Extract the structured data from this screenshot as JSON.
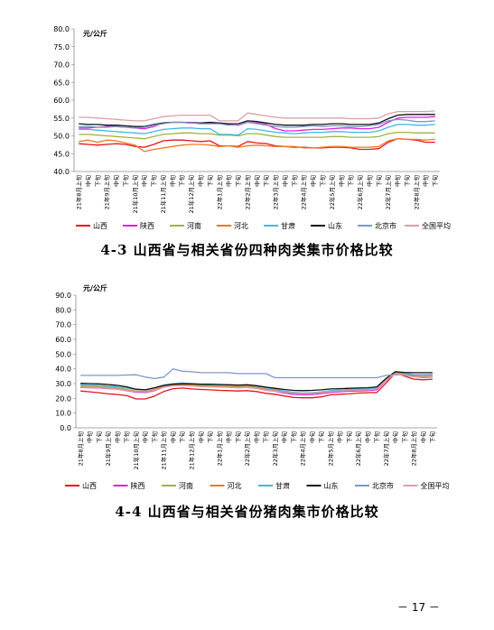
{
  "page_number": "－ 17 －",
  "chart_data": [
    {
      "type": "line",
      "unit": "元/公斤",
      "ylim": [
        40,
        80
      ],
      "yticks": [
        "80.0",
        "75.0",
        "70.0",
        "65.0",
        "60.0",
        "55.0",
        "50.0",
        "45.0",
        "40.0"
      ],
      "grid": false,
      "legend_position": "bottom",
      "xtick_labels": [
        "21年8月上旬",
        "中旬",
        "下旬",
        "21年9月上旬",
        "中旬",
        "下旬",
        "21年10月上旬",
        "中旬",
        "下旬",
        "21年11月上旬",
        "中旬",
        "下旬",
        "21年12月上旬",
        "中旬",
        "下旬",
        "22年1月上旬",
        "中旬",
        "下旬",
        "22年2月上旬",
        "中旬",
        "下旬",
        "22年3月上旬",
        "中旬",
        "下旬",
        "22年4月上旬",
        "中旬",
        "下旬",
        "22年5月上旬",
        "中旬",
        "下旬",
        "22年6月上旬",
        "中旬",
        "下旬",
        "22年7月上旬",
        "中旬",
        "下旬",
        "22年8月上旬",
        "中旬",
        "下旬"
      ],
      "series": [
        {
          "name": "山西",
          "color": "#e8141c",
          "values": [
            47.8,
            47.6,
            47.4,
            47.6,
            47.8,
            47.6,
            47.0,
            46.8,
            47.6,
            48.6,
            48.8,
            48.8,
            48.6,
            48.4,
            48.6,
            47.2,
            47.2,
            47.0,
            48.4,
            48.0,
            47.8,
            47.2,
            47.0,
            46.8,
            46.8,
            46.6,
            46.6,
            46.8,
            46.8,
            46.6,
            46.2,
            46.2,
            46.4,
            48.2,
            49.2,
            49.0,
            48.8,
            48.2,
            48.2
          ]
        },
        {
          "name": "陕西",
          "color": "#e020e0",
          "values": [
            52.2,
            52.2,
            52.4,
            52.6,
            52.6,
            52.4,
            52.2,
            52.0,
            52.6,
            53.6,
            53.8,
            53.8,
            53.8,
            53.6,
            53.6,
            53.6,
            53.2,
            53.0,
            53.8,
            53.6,
            53.2,
            52.0,
            51.4,
            51.4,
            51.6,
            51.8,
            51.8,
            52.0,
            52.2,
            52.2,
            52.0,
            52.0,
            52.4,
            53.8,
            55.0,
            55.2,
            55.2,
            55.2,
            55.4
          ]
        },
        {
          "name": "河南",
          "color": "#9fb43c",
          "values": [
            50.4,
            50.4,
            50.2,
            50.0,
            49.8,
            49.6,
            49.4,
            49.2,
            49.8,
            50.4,
            50.6,
            50.8,
            50.8,
            50.6,
            50.6,
            50.2,
            50.2,
            50.0,
            50.6,
            50.6,
            50.2,
            49.8,
            49.6,
            49.6,
            49.6,
            49.6,
            49.6,
            49.8,
            49.8,
            49.6,
            49.6,
            49.6,
            49.8,
            50.6,
            51.0,
            51.0,
            50.8,
            50.8,
            50.8
          ]
        },
        {
          "name": "河北",
          "color": "#f07820",
          "values": [
            48.4,
            48.8,
            48.2,
            48.8,
            48.6,
            48.0,
            47.4,
            45.6,
            46.2,
            46.6,
            47.0,
            47.4,
            47.6,
            47.6,
            47.4,
            47.0,
            47.2,
            46.8,
            47.2,
            47.4,
            47.2,
            47.0,
            47.0,
            47.0,
            46.6,
            46.6,
            46.8,
            47.0,
            47.0,
            46.8,
            46.8,
            46.8,
            47.0,
            48.6,
            49.2,
            49.0,
            49.0,
            48.8,
            49.0
          ]
        },
        {
          "name": "甘肃",
          "color": "#40b8e8",
          "values": [
            51.8,
            51.8,
            51.6,
            51.4,
            51.2,
            51.0,
            50.8,
            50.6,
            51.2,
            51.8,
            52.0,
            52.2,
            52.2,
            52.0,
            52.0,
            50.4,
            50.4,
            50.2,
            52.0,
            51.8,
            51.4,
            51.0,
            50.8,
            50.6,
            50.8,
            51.0,
            51.0,
            51.2,
            51.2,
            51.0,
            51.0,
            51.0,
            51.4,
            52.4,
            53.2,
            53.2,
            53.0,
            53.0,
            53.2
          ]
        },
        {
          "name": "山东",
          "color": "#111111",
          "values": [
            53.4,
            53.2,
            53.2,
            53.0,
            53.0,
            52.8,
            52.6,
            52.6,
            53.2,
            53.6,
            53.8,
            53.8,
            53.6,
            53.6,
            53.8,
            53.6,
            53.4,
            53.4,
            54.2,
            54.0,
            53.6,
            53.2,
            53.0,
            53.0,
            53.0,
            53.2,
            53.2,
            53.4,
            53.4,
            53.2,
            53.2,
            53.2,
            53.6,
            54.8,
            55.8,
            56.0,
            56.0,
            56.0,
            56.0
          ]
        },
        {
          "name": "北京市",
          "color": "#7a98c8",
          "values": [
            52.6,
            52.6,
            52.4,
            52.4,
            52.6,
            52.4,
            52.2,
            52.4,
            53.0,
            53.4,
            53.8,
            53.8,
            53.6,
            53.4,
            53.4,
            53.4,
            53.0,
            53.2,
            53.8,
            53.4,
            53.0,
            52.6,
            52.4,
            52.4,
            52.6,
            52.8,
            52.6,
            52.8,
            52.8,
            52.6,
            52.6,
            52.8,
            53.2,
            54.2,
            54.6,
            54.4,
            54.0,
            54.0,
            54.2
          ]
        },
        {
          "name": "全国平均",
          "color": "#d8a0a8",
          "values": [
            55.2,
            55.2,
            55.0,
            54.8,
            54.6,
            54.4,
            54.2,
            54.2,
            54.8,
            55.4,
            55.6,
            55.8,
            55.8,
            55.8,
            55.8,
            54.2,
            54.2,
            54.2,
            56.4,
            56.0,
            55.6,
            55.2,
            55.0,
            55.0,
            55.0,
            55.0,
            55.0,
            55.0,
            55.0,
            54.8,
            54.8,
            54.8,
            55.0,
            56.2,
            56.8,
            56.8,
            56.8,
            56.8,
            57.0
          ]
        }
      ],
      "caption": "4-3 山西省与相关省份四种肉类集市价格比较"
    },
    {
      "type": "line",
      "unit": "元/公斤",
      "ylim": [
        0,
        90
      ],
      "yticks": [
        "90.0",
        "80.0",
        "70.0",
        "60.0",
        "50.0",
        "40.0",
        "30.0",
        "20.0",
        "10.0",
        "0.0"
      ],
      "grid": false,
      "legend_position": "bottom",
      "xtick_labels": [
        "21年8月上旬",
        "中旬",
        "下旬",
        "21年9月上旬",
        "中旬",
        "下旬",
        "21年10月上旬",
        "中旬",
        "下旬",
        "21年11月上旬",
        "中旬",
        "下旬",
        "21年12月上旬",
        "中旬",
        "下旬",
        "22年1月上旬",
        "中旬",
        "下旬",
        "22年2月上旬",
        "中旬",
        "下旬",
        "22年3月上旬",
        "中旬",
        "下旬",
        "22年4月上旬",
        "中旬",
        "下旬",
        "22年5月上旬",
        "中旬",
        "下旬",
        "22年6月上旬",
        "中旬",
        "下旬",
        "22年7月上旬",
        "中旬",
        "下旬",
        "22年8月上旬",
        "中旬",
        "下旬"
      ],
      "series": [
        {
          "name": "山西",
          "color": "#e8141c",
          "values": [
            25.0,
            24.4,
            23.8,
            23.0,
            22.6,
            21.8,
            19.6,
            19.6,
            21.6,
            24.6,
            26.6,
            27.0,
            26.4,
            26.0,
            25.8,
            25.4,
            25.2,
            25.0,
            25.2,
            24.6,
            23.4,
            22.8,
            21.6,
            20.6,
            20.4,
            20.4,
            21.0,
            22.4,
            22.8,
            23.0,
            23.6,
            23.8,
            24.0,
            30.4,
            37.2,
            35.0,
            33.0,
            32.6,
            33.0
          ]
        },
        {
          "name": "陕西",
          "color": "#e020e0",
          "values": [
            27.4,
            27.2,
            27.0,
            26.6,
            26.2,
            25.2,
            24.2,
            24.0,
            25.2,
            27.6,
            28.6,
            28.8,
            28.4,
            28.2,
            28.0,
            27.8,
            27.6,
            27.2,
            27.4,
            26.8,
            25.6,
            24.8,
            23.6,
            22.8,
            22.4,
            22.6,
            23.2,
            24.0,
            24.4,
            24.8,
            25.0,
            25.2,
            25.8,
            32.0,
            37.6,
            36.0,
            34.8,
            34.0,
            34.4
          ]
        },
        {
          "name": "河南",
          "color": "#9fb43c",
          "values": [
            28.4,
            28.2,
            28.0,
            27.6,
            27.0,
            26.0,
            25.0,
            24.8,
            26.0,
            28.2,
            29.4,
            29.6,
            29.2,
            28.8,
            28.6,
            28.4,
            28.2,
            28.0,
            28.2,
            27.6,
            26.4,
            25.4,
            24.4,
            23.6,
            23.2,
            23.4,
            24.0,
            24.6,
            25.0,
            25.4,
            25.6,
            25.8,
            26.4,
            32.6,
            37.8,
            36.4,
            35.2,
            34.6,
            35.0
          ]
        },
        {
          "name": "河北",
          "color": "#f07820",
          "values": [
            27.8,
            27.6,
            27.4,
            27.0,
            26.4,
            25.6,
            24.8,
            24.6,
            26.0,
            28.0,
            29.0,
            29.2,
            28.8,
            28.4,
            28.2,
            28.0,
            27.8,
            27.6,
            27.8,
            27.2,
            26.2,
            25.4,
            24.6,
            24.0,
            23.6,
            23.8,
            24.2,
            24.8,
            25.2,
            25.6,
            25.8,
            26.0,
            26.6,
            32.8,
            37.4,
            36.2,
            35.0,
            34.6,
            34.8
          ]
        },
        {
          "name": "甘肃",
          "color": "#40b8e8",
          "values": [
            29.2,
            29.0,
            28.8,
            28.4,
            27.8,
            27.0,
            26.0,
            25.8,
            27.0,
            29.0,
            30.0,
            30.4,
            30.0,
            29.6,
            29.4,
            29.2,
            29.0,
            28.8,
            29.0,
            28.4,
            27.2,
            26.2,
            25.0,
            24.0,
            23.6,
            23.8,
            24.4,
            25.2,
            25.6,
            26.0,
            26.2,
            26.4,
            27.0,
            33.4,
            38.2,
            37.2,
            36.0,
            35.6,
            35.8
          ]
        },
        {
          "name": "山东",
          "color": "#111111",
          "values": [
            30.2,
            30.0,
            29.8,
            29.4,
            28.8,
            27.8,
            26.2,
            25.8,
            27.2,
            28.8,
            29.6,
            29.8,
            29.8,
            29.6,
            29.6,
            29.4,
            29.2,
            29.0,
            29.2,
            28.6,
            27.6,
            26.8,
            26.0,
            25.4,
            25.2,
            25.4,
            25.8,
            26.4,
            26.6,
            26.8,
            27.0,
            27.2,
            27.8,
            33.6,
            38.0,
            37.6,
            37.4,
            37.4,
            37.4
          ]
        },
        {
          "name": "北京市",
          "color": "#7a98c8",
          "values": [
            35.6,
            35.6,
            35.6,
            35.6,
            35.6,
            35.8,
            36.0,
            34.4,
            33.4,
            34.4,
            40.0,
            38.4,
            38.0,
            37.4,
            37.4,
            37.4,
            37.4,
            36.8,
            36.8,
            36.8,
            36.8,
            34.0,
            34.0,
            34.0,
            34.0,
            34.0,
            34.0,
            34.0,
            34.0,
            34.0,
            34.0,
            34.0,
            34.0,
            35.6,
            36.0,
            36.0,
            36.0,
            36.0,
            36.2
          ]
        },
        {
          "name": "全国平均",
          "color": "#d8a0a8",
          "values": [
            27.6,
            27.4,
            27.2,
            26.8,
            26.2,
            25.4,
            24.6,
            24.4,
            25.6,
            27.6,
            28.6,
            28.8,
            28.4,
            28.0,
            27.8,
            27.6,
            27.4,
            27.2,
            27.4,
            26.8,
            25.8,
            25.0,
            24.2,
            23.6,
            23.2,
            23.4,
            24.0,
            24.6,
            25.0,
            25.4,
            25.6,
            25.8,
            26.4,
            32.4,
            36.8,
            35.6,
            34.6,
            34.2,
            34.4
          ]
        }
      ],
      "caption": "4-4 山西省与相关省份猪肉集市价格比较"
    }
  ]
}
